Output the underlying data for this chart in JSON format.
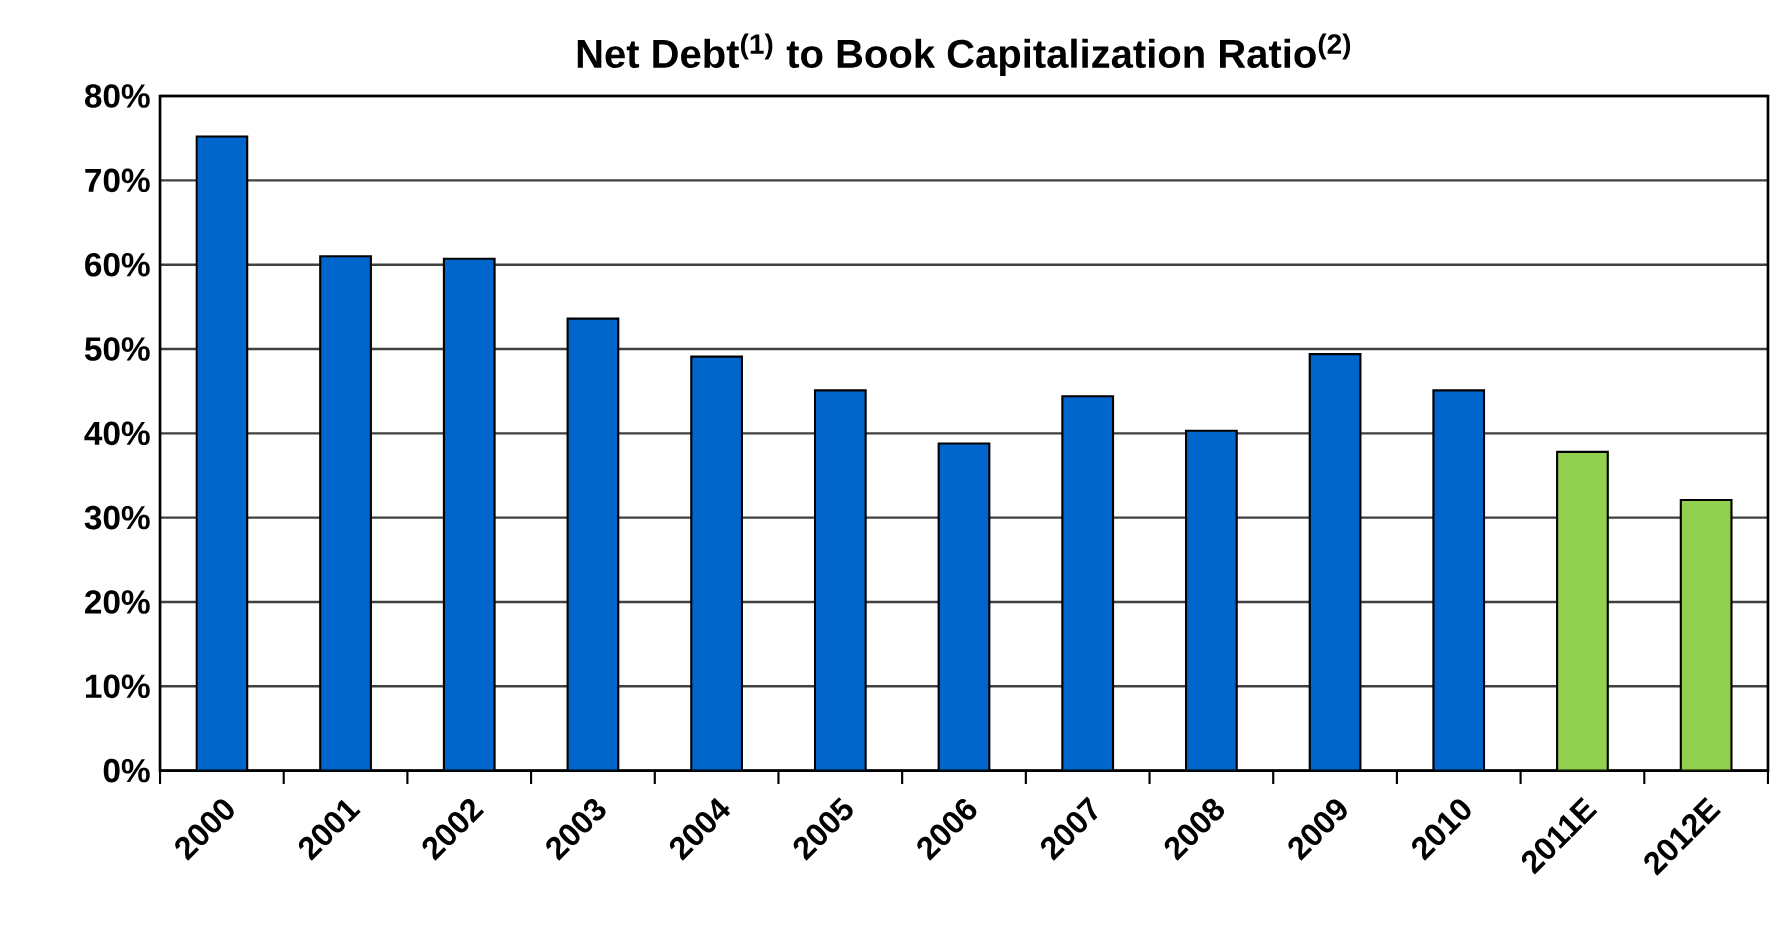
{
  "chart_data": {
    "type": "bar",
    "title": "Net Debt$^{(1)}$ to Book Capitalization  Ratio$^{(2)}$",
    "categories": [
      "2000",
      "2001",
      "2002",
      "2003",
      "2004",
      "2005",
      "2006",
      "2007",
      "2008",
      "2009",
      "2010",
      "2011E",
      "2012E"
    ],
    "values": [
      75.2,
      61.0,
      60.7,
      53.6,
      49.1,
      45.1,
      38.8,
      44.4,
      40.3,
      49.4,
      45.1,
      37.8,
      32.1
    ],
    "colors": [
      "#0066cc",
      "#0066cc",
      "#0066cc",
      "#0066cc",
      "#0066cc",
      "#0066cc",
      "#0066cc",
      "#0066cc",
      "#0066cc",
      "#0066cc",
      "#0066cc",
      "#92d050",
      "#92d050"
    ],
    "ylim": [
      0,
      80
    ],
    "yticks": [
      {
        "value": 0,
        "label": "0%"
      },
      {
        "value": 10,
        "label": "10%"
      },
      {
        "value": 20,
        "label": "20%"
      },
      {
        "value": 30,
        "label": "30%"
      },
      {
        "value": 40,
        "label": "40%"
      },
      {
        "value": 50,
        "label": "50%"
      },
      {
        "value": 60,
        "label": "60%"
      },
      {
        "value": 70,
        "label": "70%"
      },
      {
        "value": 80,
        "label": "80%"
      }
    ],
    "grid": "y"
  }
}
